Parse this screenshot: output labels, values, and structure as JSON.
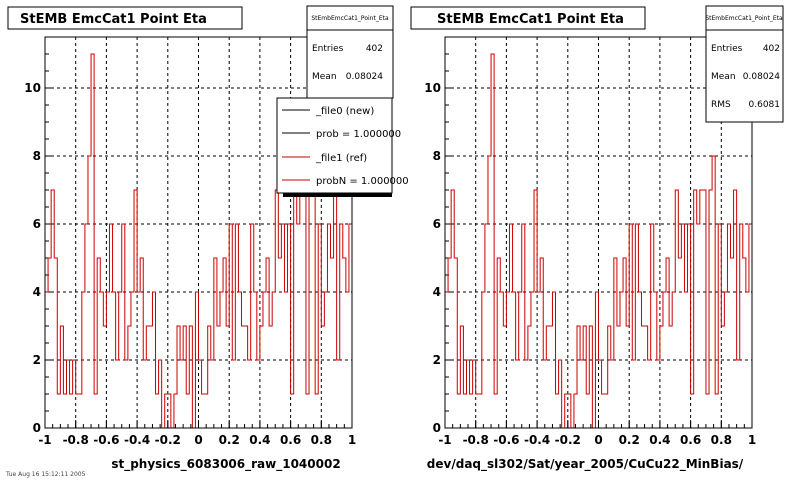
{
  "panels": [
    {
      "title": "StEMB EmcCat1 Point Eta",
      "xlabel": "st_physics_6083006_raw_1040002",
      "stats": {
        "name": "StEmbEmcCat1_Point_Eta",
        "rows": [
          {
            "label": "Entries",
            "value": "402"
          },
          {
            "label": "Mean",
            "value": "0.08024"
          }
        ]
      },
      "legend": [
        {
          "label": "_file0 (new)",
          "color": "#000000"
        },
        {
          "label": "prob = 1.000000",
          "color": "#000000"
        },
        {
          "label": "_file1 (ref)",
          "color": "#cc0000"
        },
        {
          "label": "probN = 1.000000",
          "color": "#cc0000"
        }
      ]
    },
    {
      "title": "StEMB EmcCat1 Point Eta",
      "xlabel": "dev/daq_sl302/Sat/year_2005/CuCu22_MinBias/",
      "stats": {
        "name": "StEmbEmcCat1_Point_Eta",
        "rows": [
          {
            "label": "Entries",
            "value": "402"
          },
          {
            "label": "Mean",
            "value": "0.08024"
          },
          {
            "label": "RMS",
            "value": "0.6081"
          }
        ]
      },
      "legend": []
    }
  ],
  "footer": "Tue Aug 16 15:12:11 2005",
  "chart_data": [
    {
      "type": "bar",
      "title": "StEMB EmcCat1 Point Eta",
      "xlabel": "st_physics_6083006_raw_1040002",
      "ylabel": "",
      "xlim": [
        -1,
        1
      ],
      "ylim": [
        0,
        11.5
      ],
      "x_ticks": [
        "-1",
        "-0.8",
        "-0.6",
        "-0.4",
        "-0.2",
        "0",
        "0.2",
        "0.4",
        "0.6",
        "0.8",
        "1"
      ],
      "y_ticks": [
        "0",
        "2",
        "4",
        "6",
        "8",
        "10"
      ],
      "grid": true,
      "bin_width": 0.02,
      "series": [
        {
          "name": "_file1 (ref)",
          "color": "#cc0000",
          "values": [
            4,
            5,
            7,
            5,
            1,
            3,
            1,
            2,
            1,
            2,
            1,
            1,
            4,
            6,
            8,
            11,
            1,
            5,
            4,
            3,
            4,
            6,
            4,
            2,
            4,
            6,
            2,
            3,
            4,
            7,
            4,
            5,
            2,
            3,
            3,
            4,
            1,
            2,
            0,
            1,
            1,
            0,
            1,
            3,
            2,
            3,
            1,
            3,
            0,
            4,
            2,
            1,
            1,
            3,
            2,
            5,
            3,
            4,
            5,
            3,
            6,
            2,
            6,
            4,
            3,
            3,
            2,
            6,
            4,
            2,
            3,
            4,
            5,
            3,
            4,
            7,
            5,
            6,
            4,
            6,
            1,
            7,
            6,
            7,
            7,
            1,
            7,
            8,
            1,
            6,
            3,
            4,
            6,
            5,
            7,
            2,
            6,
            5,
            4,
            6
          ]
        }
      ]
    },
    {
      "type": "bar",
      "title": "StEMB EmcCat1 Point Eta",
      "xlabel": "dev/daq_sl302/Sat/year_2005/CuCu22_MinBias/",
      "ylabel": "",
      "xlim": [
        -1,
        1
      ],
      "ylim": [
        0,
        11.5
      ],
      "x_ticks": [
        "-1",
        "-0.8",
        "-0.6",
        "-0.4",
        "-0.2",
        "0",
        "0.2",
        "0.4",
        "0.6",
        "0.8",
        "1"
      ],
      "y_ticks": [
        "0",
        "2",
        "4",
        "6",
        "8",
        "10"
      ],
      "grid": true,
      "bin_width": 0.02,
      "series": [
        {
          "name": "_file1 (ref)",
          "color": "#cc0000",
          "values": [
            4,
            5,
            7,
            5,
            1,
            3,
            1,
            2,
            1,
            2,
            1,
            1,
            4,
            6,
            8,
            11,
            1,
            5,
            4,
            3,
            4,
            6,
            4,
            2,
            4,
            6,
            2,
            3,
            4,
            7,
            4,
            5,
            2,
            3,
            3,
            4,
            1,
            2,
            0,
            1,
            1,
            0,
            1,
            3,
            2,
            3,
            1,
            3,
            0,
            4,
            2,
            1,
            1,
            3,
            2,
            5,
            3,
            4,
            5,
            3,
            6,
            2,
            6,
            4,
            3,
            3,
            2,
            6,
            4,
            2,
            3,
            4,
            5,
            3,
            4,
            7,
            5,
            6,
            4,
            6,
            1,
            7,
            6,
            7,
            7,
            1,
            7,
            8,
            1,
            6,
            3,
            4,
            6,
            5,
            7,
            2,
            6,
            5,
            4,
            6
          ]
        }
      ]
    }
  ]
}
